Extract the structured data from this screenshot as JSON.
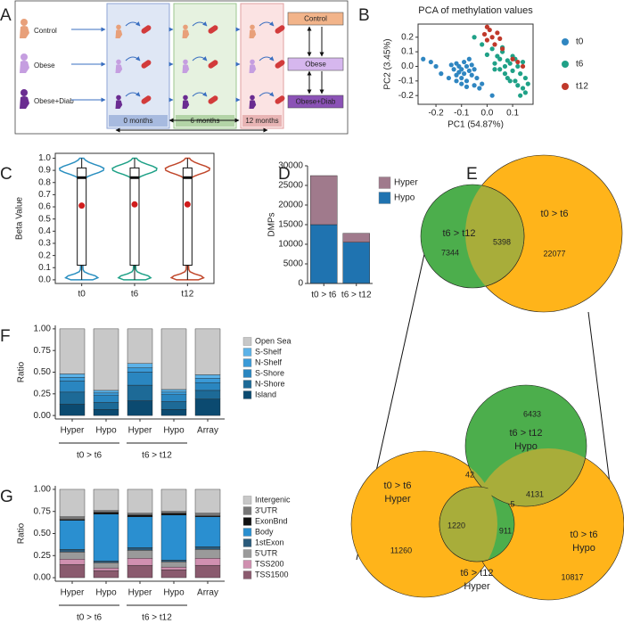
{
  "panel_labels": [
    "A",
    "B",
    "C",
    "D",
    "E",
    "F",
    "G"
  ],
  "diagram": {
    "groups": [
      "Control",
      "Obese",
      "Obese+Diab"
    ],
    "timepoints": [
      "0 months",
      "6 months",
      "12 months"
    ],
    "outcomes": [
      "Control",
      "Obese",
      "Obese+Diab"
    ]
  },
  "venn": {
    "top": {
      "sets": [
        "t6 > t12",
        "t0 > t6"
      ],
      "counts": [
        7344,
        5398,
        22077
      ]
    },
    "bottom": {
      "sets": [
        [
          "t0 > t6",
          "Hyper"
        ],
        [
          "t6 > t12",
          "Hypo"
        ],
        [
          "t0 > t6",
          "Hypo"
        ],
        [
          "t6 > t12",
          "Hyper"
        ]
      ],
      "counts": [
        6433,
        42,
        4131,
        11260,
        1220,
        911,
        5,
        10817
      ]
    }
  },
  "chart_data": [
    {
      "type": "scatter",
      "title": "PCA of methylation values",
      "xlabel": "PC1 (54.87%)",
      "ylabel": "PC2 (3.45%)",
      "xlim": [
        -0.27,
        0.18
      ],
      "ylim": [
        -0.26,
        0.29
      ],
      "xticks": [
        -0.2,
        -0.1,
        {
          "value": 0,
          "label": "0.0"
        },
        0.1
      ],
      "yticks": [
        0.2,
        0.1,
        {
          "value": 0,
          "label": "0.0"
        },
        -0.1,
        -0.2
      ],
      "legend": "right",
      "series": [
        {
          "name": "t0",
          "color": "#2f86c1",
          "x": [
            -0.25,
            -0.22,
            -0.2,
            -0.18,
            -0.15,
            -0.14,
            -0.13,
            -0.12,
            -0.12,
            -0.11,
            -0.11,
            -0.1,
            -0.1,
            -0.09,
            -0.09,
            -0.08,
            -0.08,
            -0.07,
            -0.07,
            -0.06,
            -0.05,
            -0.05,
            -0.04,
            -0.03,
            -0.02,
            -0.12,
            -0.1,
            -0.08,
            -0.06,
            0.02
          ],
          "values": [
            0.05,
            0.03,
            0.0,
            -0.05,
            -0.08,
            0.01,
            -0.02,
            0.02,
            -0.06,
            -0.04,
            0.0,
            -0.02,
            -0.08,
            0.03,
            -0.05,
            0.0,
            -0.1,
            -0.03,
            0.05,
            -0.06,
            -0.02,
            -0.13,
            -0.08,
            -0.15,
            -0.12,
            -0.1,
            -0.12,
            -0.14,
            0.01,
            -0.2
          ]
        },
        {
          "name": "t6",
          "color": "#1fa187",
          "x": [
            -0.02,
            0.0,
            0.02,
            0.03,
            0.04,
            0.05,
            0.05,
            0.06,
            0.07,
            0.07,
            0.08,
            0.08,
            0.09,
            0.1,
            0.1,
            0.11,
            0.12,
            0.12,
            0.13,
            0.14,
            0.14,
            0.15,
            0.15,
            0.16,
            0.03,
            0.06,
            0.09,
            0.11,
            0.13,
            -0.05
          ],
          "values": [
            0.15,
            0.08,
            0.12,
            0.02,
            0.07,
            -0.02,
            0.05,
            0.1,
            0.0,
            -0.05,
            0.04,
            -0.08,
            0.02,
            -0.03,
            0.07,
            -0.1,
            0.0,
            -0.13,
            -0.05,
            0.03,
            -0.15,
            -0.08,
            -0.18,
            -0.12,
            -0.02,
            0.13,
            -0.1,
            0.05,
            -0.2,
            0.2
          ]
        },
        {
          "name": "t12",
          "color": "#c0392b",
          "x": [
            -0.01,
            0.0,
            0.01,
            0.02,
            0.03,
            0.04,
            0.05,
            0.06,
            0.1,
            0.12,
            0.14,
            0.0
          ],
          "values": [
            0.22,
            0.18,
            0.25,
            0.2,
            0.15,
            0.23,
            0.19,
            0.12,
            0.05,
            0.03,
            0.0,
            0.27
          ]
        }
      ]
    },
    {
      "type": "violin",
      "ylabel": "Beta Value",
      "categories": [
        "t0",
        "t6",
        "t12"
      ],
      "colors": [
        "#2a8fc0",
        "#1fa187",
        "#c0472b"
      ],
      "ylim": [
        -0.03,
        1.04
      ],
      "yticks": [
        {
          "value": 0,
          "label": "0.0"
        },
        0.1,
        0.2,
        0.3,
        0.4,
        0.5,
        0.6,
        0.7,
        0.8,
        0.9,
        {
          "value": 1,
          "label": "1.0"
        }
      ],
      "whisker_low": [
        0.0,
        0.0,
        0.0
      ],
      "q1": [
        0.12,
        0.12,
        0.12
      ],
      "median": [
        0.84,
        0.84,
        0.84
      ],
      "q3": [
        0.92,
        0.92,
        0.92
      ],
      "whisker_high": [
        1.0,
        1.0,
        1.0
      ],
      "mean": [
        0.61,
        0.62,
        0.62
      ]
    },
    {
      "type": "bar",
      "stacked": true,
      "ylabel": "DMPs",
      "categories": [
        "t0 > t6",
        "t6 > t12"
      ],
      "ylim": [
        0,
        30000
      ],
      "yticks": [
        0,
        5000,
        10000,
        15000,
        20000,
        25000,
        30000
      ],
      "series": [
        {
          "name": "Hypo",
          "color": "#1f73b0",
          "values": [
            15000,
            10500
          ]
        },
        {
          "name": "Hyper",
          "color": "#a07a8c",
          "values": [
            12500,
            2300
          ]
        }
      ]
    },
    {
      "type": "bar",
      "stacked": true,
      "ylabel": "Ratio",
      "categories": [
        "Hyper",
        "Hypo",
        "Hyper",
        "Hypo",
        "Array"
      ],
      "groups": [
        "t0 > t6",
        "t6 > t12"
      ],
      "ylim": [
        -0.04,
        1.04
      ],
      "yticks": [
        {
          "value": 0,
          "label": "0.00"
        },
        {
          "value": 0.25,
          "label": "0.25"
        },
        {
          "value": 0.5,
          "label": "0.50"
        },
        {
          "value": 0.75,
          "label": "0.75"
        },
        {
          "value": 1,
          "label": "1.00"
        }
      ],
      "series": [
        {
          "name": "Island",
          "color": "#0b4a70",
          "values": [
            0.13,
            0.07,
            0.17,
            0.07,
            0.19
          ]
        },
        {
          "name": "N-Shore",
          "color": "#1d6a97",
          "values": [
            0.14,
            0.08,
            0.18,
            0.09,
            0.1
          ]
        },
        {
          "name": "S-Shore",
          "color": "#2a86c0",
          "values": [
            0.13,
            0.08,
            0.15,
            0.08,
            0.09
          ]
        },
        {
          "name": "N-Shelf",
          "color": "#3a9ad8",
          "values": [
            0.04,
            0.03,
            0.05,
            0.03,
            0.05
          ]
        },
        {
          "name": "S-Shelf",
          "color": "#5cb2e8",
          "values": [
            0.04,
            0.03,
            0.05,
            0.03,
            0.04
          ]
        },
        {
          "name": "Open Sea",
          "color": "#c8c8c8",
          "values": [
            0.52,
            0.71,
            0.4,
            0.7,
            0.53
          ]
        }
      ]
    },
    {
      "type": "bar",
      "stacked": true,
      "ylabel": "Ratio",
      "categories": [
        "Hyper",
        "Hypo",
        "Hyper",
        "Hypo",
        "Array"
      ],
      "groups": [
        "t0 > t6",
        "t6 > t12"
      ],
      "ylim": [
        -0.04,
        1.04
      ],
      "yticks": [
        {
          "value": 0,
          "label": "0.00"
        },
        {
          "value": 0.25,
          "label": "0.25"
        },
        {
          "value": 0.5,
          "label": "0.50"
        },
        {
          "value": 0.75,
          "label": "0.75"
        },
        {
          "value": 1,
          "label": "1.00"
        }
      ],
      "series": [
        {
          "name": "TSS1500",
          "color": "#8a5a6e",
          "values": [
            0.15,
            0.08,
            0.14,
            0.09,
            0.14
          ]
        },
        {
          "name": "TSS200",
          "color": "#d090b0",
          "values": [
            0.06,
            0.03,
            0.08,
            0.03,
            0.08
          ]
        },
        {
          "name": "5'UTR",
          "color": "#9a9a9a",
          "values": [
            0.08,
            0.06,
            0.09,
            0.06,
            0.1
          ]
        },
        {
          "name": "1stExon",
          "color": "#2a5a7a",
          "values": [
            0.03,
            0.02,
            0.03,
            0.02,
            0.03
          ]
        },
        {
          "name": "Body",
          "color": "#2a8fd0",
          "values": [
            0.33,
            0.53,
            0.35,
            0.51,
            0.34
          ]
        },
        {
          "name": "ExonBnd",
          "color": "#111111",
          "values": [
            0.01,
            0.02,
            0.02,
            0.02,
            0.01
          ]
        },
        {
          "name": "3'UTR",
          "color": "#777777",
          "values": [
            0.03,
            0.02,
            0.02,
            0.02,
            0.03
          ]
        },
        {
          "name": "Intergenic",
          "color": "#c8c8c8",
          "values": [
            0.31,
            0.24,
            0.27,
            0.25,
            0.27
          ]
        }
      ]
    }
  ]
}
